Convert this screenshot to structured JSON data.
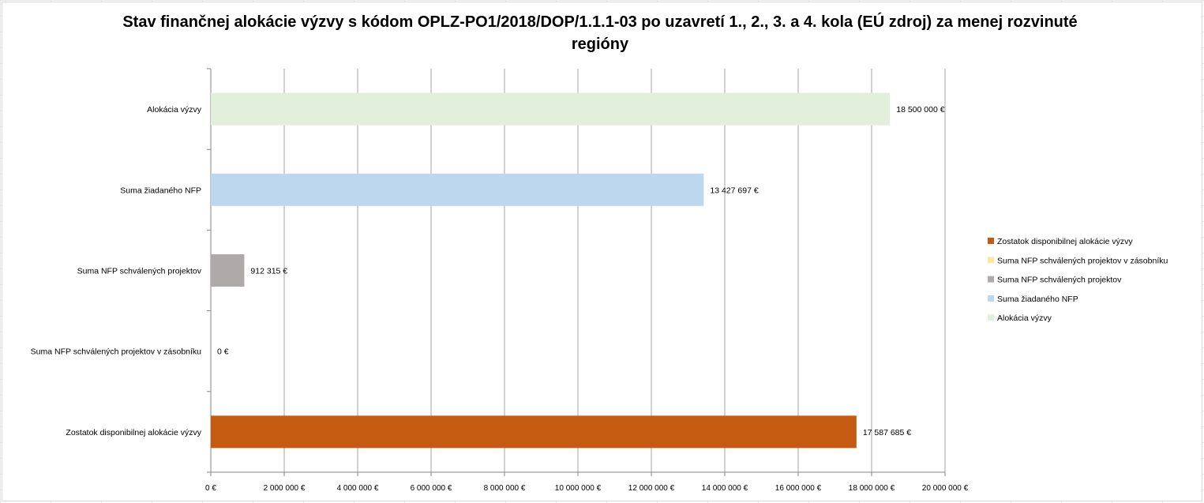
{
  "chart_data": {
    "type": "bar",
    "orientation": "horizontal",
    "title": "Stav finančnej alokácie výzvy s kódom OPLZ-PO1/2018/DOP/1.1.1-03 po uzavretí 1., 2., 3. a 4. kola (EÚ zdroj) za menej rozvinuté regióny",
    "categories": [
      "Alokácia výzvy",
      "Suma žiadaného NFP",
      "Suma NFP schválených projektov",
      "Suma NFP schválených projektov v zásobníku",
      "Zostatok disponibilnej alokácie výzvy"
    ],
    "values": [
      18500000,
      13427697,
      912315,
      0,
      17587685
    ],
    "data_labels": [
      "18 500 000 €",
      "13 427 697 €",
      "912 315 €",
      "0 €",
      "17 587 685 €"
    ],
    "colors": [
      "#e2efda",
      "#bdd7ee",
      "#aeaaaa",
      "#ffe699",
      "#c55a11"
    ],
    "xlim": [
      0,
      20000000
    ],
    "x_ticks": [
      0,
      2000000,
      4000000,
      6000000,
      8000000,
      10000000,
      12000000,
      14000000,
      16000000,
      18000000,
      20000000
    ],
    "x_tick_labels": [
      "0 €",
      "2 000 000 €",
      "4 000 000 €",
      "6 000 000 €",
      "8 000 000 €",
      "10 000 000 €",
      "12 000 000 €",
      "14 000 000 €",
      "16 000 000 €",
      "18 000 000 €",
      "20 000 000 €"
    ],
    "grid": "vertical",
    "legend_position": "right",
    "legend": [
      {
        "label": "Zostatok disponibilnej alokácie výzvy",
        "color": "#c55a11"
      },
      {
        "label": "Suma NFP schválených projektov v zásobníku",
        "color": "#ffe699"
      },
      {
        "label": "Suma NFP schválených projektov",
        "color": "#aeaaaa"
      },
      {
        "label": "Suma žiadaného NFP",
        "color": "#bdd7ee"
      },
      {
        "label": "Alokácia výzvy",
        "color": "#e2efda"
      }
    ]
  }
}
